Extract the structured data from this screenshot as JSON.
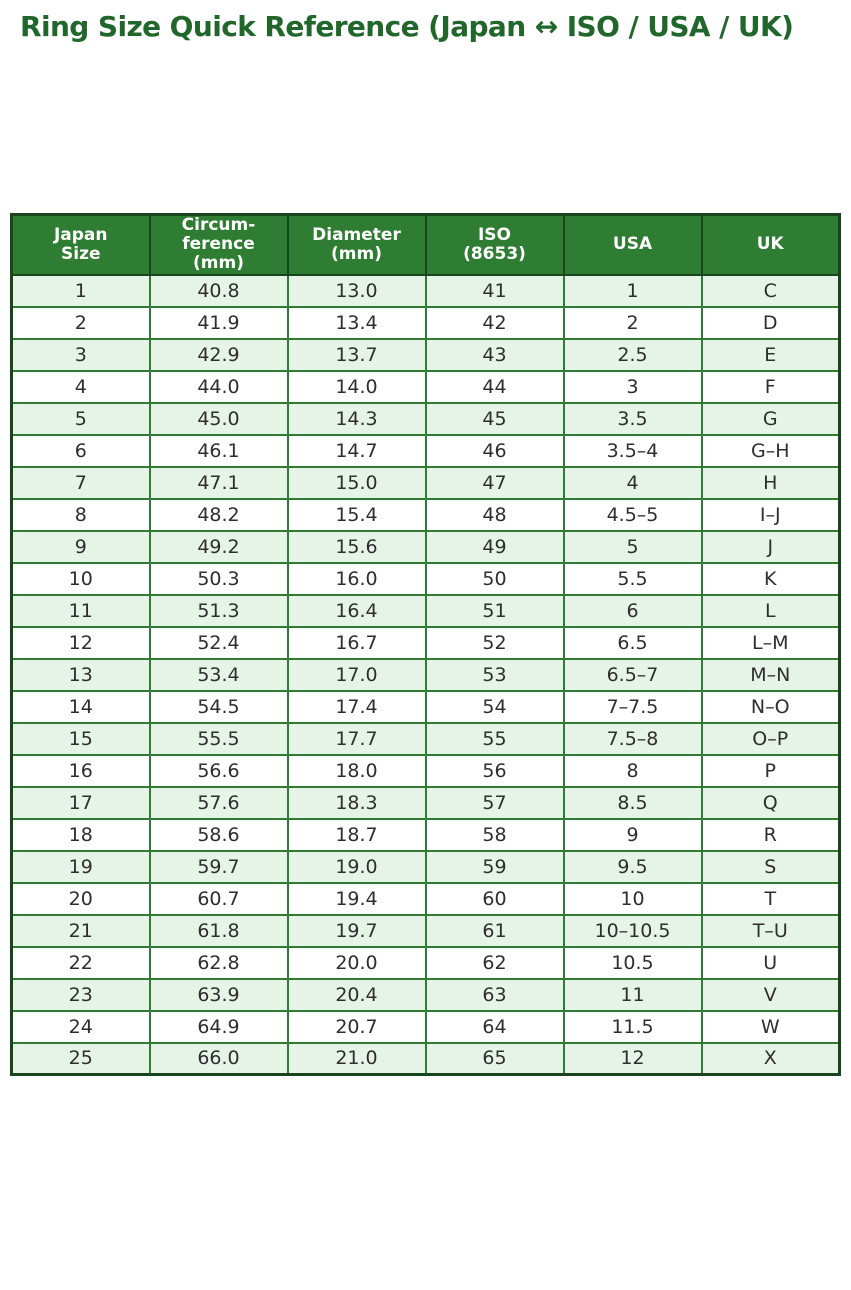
{
  "page": {
    "title": "Ring Size Quick Reference (Japan ↔ ISO / USA / UK)"
  },
  "colors": {
    "title_text": "#21662a",
    "header_bg": "#2e7d32",
    "header_text": "#ffffff",
    "outer_border": "#18451d",
    "grid_border": "#2e7d32",
    "row_odd_bg": "#e6f4e7",
    "row_even_bg": "#ffffff",
    "cell_text": "#2e2e2e"
  },
  "table": {
    "header_display": [
      "Japan\nSize",
      "Circum-\nference\n(mm)",
      "Diameter\n(mm)",
      "ISO\n(8653)",
      "USA",
      "UK"
    ]
  },
  "chart_data": {
    "type": "table",
    "title": "Ring Size Quick Reference (Japan ↔ ISO / USA / UK)",
    "columns": [
      "Japan Size",
      "Circumference (mm)",
      "Diameter (mm)",
      "ISO (8653)",
      "USA",
      "UK"
    ],
    "rows": [
      [
        "1",
        "40.8",
        "13.0",
        "41",
        "1",
        "C"
      ],
      [
        "2",
        "41.9",
        "13.4",
        "42",
        "2",
        "D"
      ],
      [
        "3",
        "42.9",
        "13.7",
        "43",
        "2.5",
        "E"
      ],
      [
        "4",
        "44.0",
        "14.0",
        "44",
        "3",
        "F"
      ],
      [
        "5",
        "45.0",
        "14.3",
        "45",
        "3.5",
        "G"
      ],
      [
        "6",
        "46.1",
        "14.7",
        "46",
        "3.5–4",
        "G–H"
      ],
      [
        "7",
        "47.1",
        "15.0",
        "47",
        "4",
        "H"
      ],
      [
        "8",
        "48.2",
        "15.4",
        "48",
        "4.5–5",
        "I–J"
      ],
      [
        "9",
        "49.2",
        "15.6",
        "49",
        "5",
        "J"
      ],
      [
        "10",
        "50.3",
        "16.0",
        "50",
        "5.5",
        "K"
      ],
      [
        "11",
        "51.3",
        "16.4",
        "51",
        "6",
        "L"
      ],
      [
        "12",
        "52.4",
        "16.7",
        "52",
        "6.5",
        "L–M"
      ],
      [
        "13",
        "53.4",
        "17.0",
        "53",
        "6.5–7",
        "M–N"
      ],
      [
        "14",
        "54.5",
        "17.4",
        "54",
        "7–7.5",
        "N–O"
      ],
      [
        "15",
        "55.5",
        "17.7",
        "55",
        "7.5–8",
        "O–P"
      ],
      [
        "16",
        "56.6",
        "18.0",
        "56",
        "8",
        "P"
      ],
      [
        "17",
        "57.6",
        "18.3",
        "57",
        "8.5",
        "Q"
      ],
      [
        "18",
        "58.6",
        "18.7",
        "58",
        "9",
        "R"
      ],
      [
        "19",
        "59.7",
        "19.0",
        "59",
        "9.5",
        "S"
      ],
      [
        "20",
        "60.7",
        "19.4",
        "60",
        "10",
        "T"
      ],
      [
        "21",
        "61.8",
        "19.7",
        "61",
        "10–10.5",
        "T–U"
      ],
      [
        "22",
        "62.8",
        "20.0",
        "62",
        "10.5",
        "U"
      ],
      [
        "23",
        "63.9",
        "20.4",
        "63",
        "11",
        "V"
      ],
      [
        "24",
        "64.9",
        "20.7",
        "64",
        "11.5",
        "W"
      ],
      [
        "25",
        "66.0",
        "21.0",
        "65",
        "12",
        "X"
      ]
    ]
  }
}
